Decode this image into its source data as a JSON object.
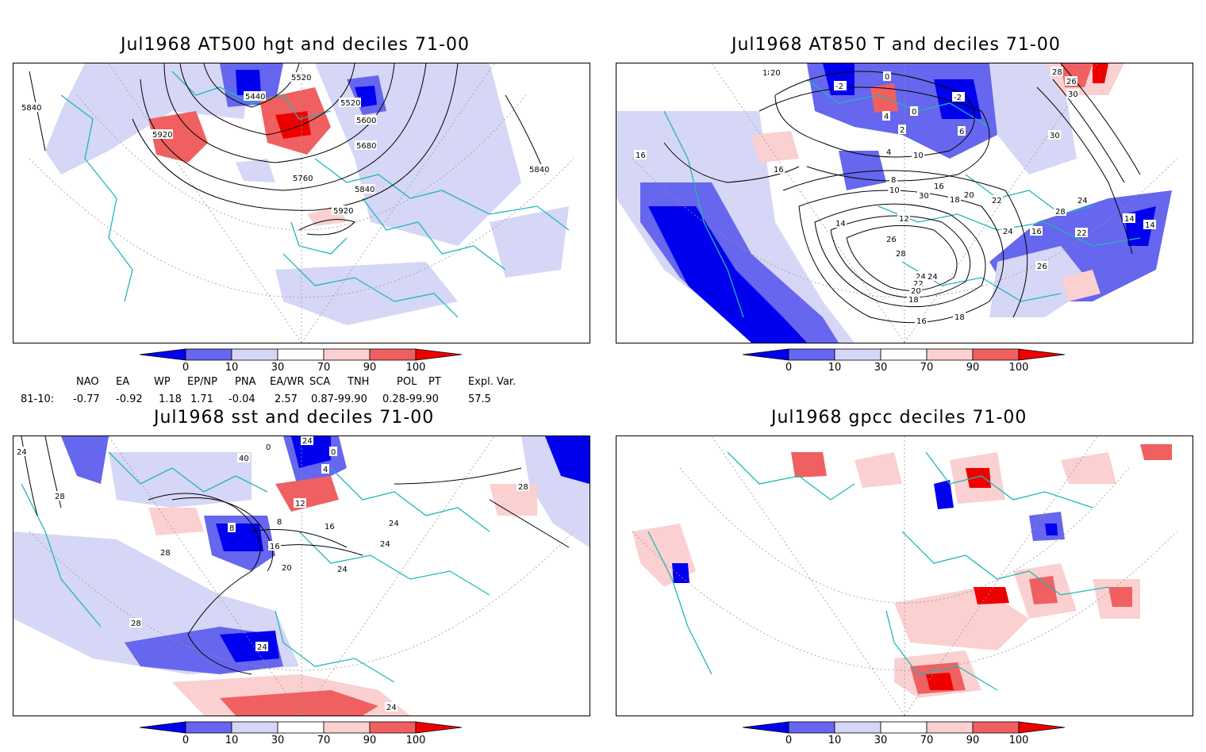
{
  "panels": [
    {
      "title": "Jul1968 AT500 hgt and deciles 71-00",
      "contour_labels": [
        "5840",
        "5920",
        "5440",
        "5520",
        "5520",
        "5600",
        "5680",
        "5760",
        "5840",
        "5920",
        "5840"
      ]
    },
    {
      "title": "Jul1968 AT850 T and deciles 71-00",
      "contour_labels": [
        "18",
        "20",
        "-2",
        "0",
        "-2",
        "28",
        "26",
        "30",
        "4",
        "0",
        "2",
        "6",
        "30",
        "16",
        "16",
        "4",
        "30",
        "10",
        "8",
        "10",
        "16",
        "18",
        "20",
        "22",
        "28",
        "24",
        "12",
        "14",
        "26",
        "16",
        "24",
        "22",
        "14",
        "26",
        "24",
        "28",
        "24",
        "22",
        "20",
        "18",
        "16",
        "18",
        "14"
      ]
    },
    {
      "title": "Jul1968 sst and deciles 71-00",
      "contour_labels": [
        "24",
        "0",
        "40",
        "0",
        "24",
        "4",
        "28",
        "28",
        "8",
        "12",
        "8",
        "16",
        "28",
        "16",
        "24",
        "24",
        "20",
        "24",
        "24",
        "28",
        "24"
      ]
    },
    {
      "title": "Jul1968 gpcc deciles 71-00",
      "contour_labels": []
    }
  ],
  "colorbar": {
    "ticks": [
      "0",
      "10",
      "30",
      "70",
      "90",
      "100"
    ],
    "colors": [
      "#0000ee",
      "#6666ee",
      "#d6d6f6",
      "#ffffff",
      "#fbd0d0",
      "#f06060",
      "#ee0000"
    ]
  },
  "indices": {
    "headers": [
      "NAO",
      "EA",
      "WP",
      "EP/NP",
      "PNA",
      "EA/WR",
      "SCA",
      "TNH",
      "POL",
      "PT",
      "Expl. Var."
    ],
    "row_label": "81-10:",
    "values": [
      "-0.77",
      "-0.92",
      "1.18",
      "1.71",
      "-0.04",
      "2.57",
      "0.87-99.90",
      "0.28-99.90",
      "57.5"
    ]
  },
  "colors": {
    "coast": "#20b8b8",
    "blue_dark": "#0000ee",
    "blue_mid": "#6666ee",
    "blue_light": "#d6d6f6",
    "red_light": "#fbd0d0",
    "red_mid": "#f06060",
    "red_dark": "#ee0000"
  }
}
